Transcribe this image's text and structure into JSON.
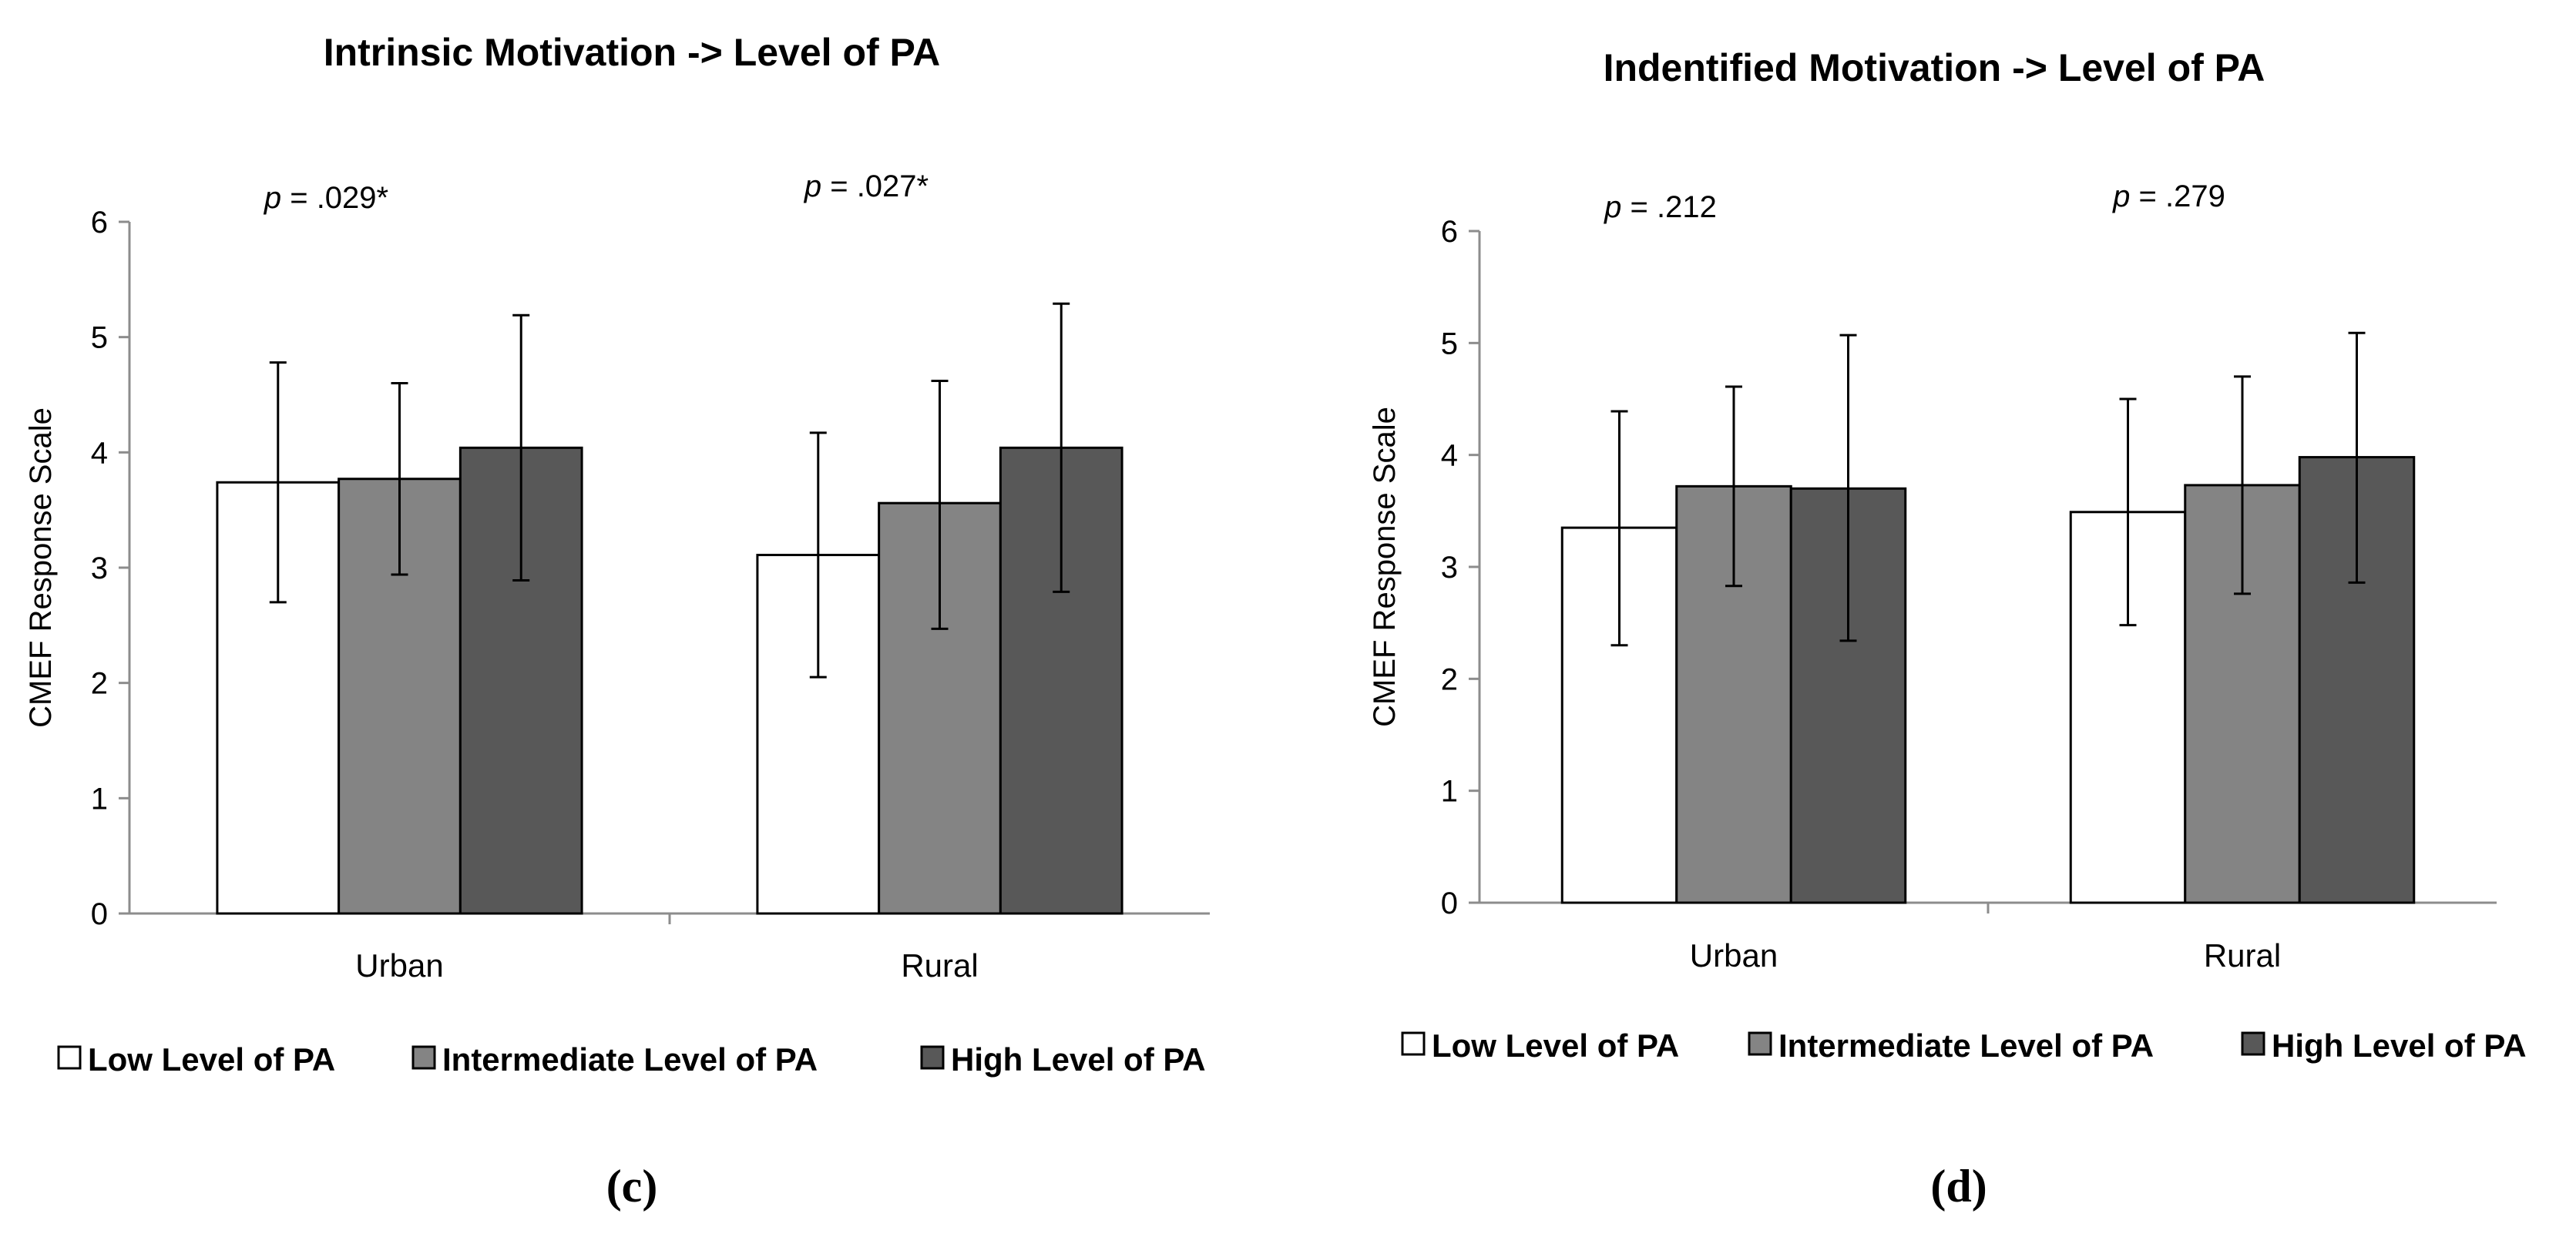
{
  "chart_data": [
    {
      "type": "bar",
      "panel_label": "c",
      "title": "Intrinsic Motivation -> Level of PA",
      "ylabel": "CMEF Response Scale",
      "xlabel": "",
      "ylim": [
        0,
        6
      ],
      "yticks": [
        0,
        1,
        2,
        3,
        4,
        5,
        6
      ],
      "categories": [
        "Urban",
        "Rural"
      ],
      "p_values": [
        {
          "prefix": "p",
          "text": " = .029*"
        },
        {
          "prefix": "p",
          "text": " = .027*"
        }
      ],
      "series": [
        {
          "name": "Low Level of PA",
          "color": "#ffffff",
          "values": [
            3.74,
            3.11
          ],
          "err_low": [
            2.7,
            2.05
          ],
          "err_high": [
            4.78,
            4.17
          ]
        },
        {
          "name": "Intermediate Level of PA",
          "color": "#848484",
          "values": [
            3.77,
            3.56
          ],
          "err_low": [
            2.94,
            2.47
          ],
          "err_high": [
            4.6,
            4.62
          ]
        },
        {
          "name": "High Level of PA",
          "color": "#585858",
          "values": [
            4.04,
            4.04
          ],
          "err_low": [
            2.89,
            2.79
          ],
          "err_high": [
            5.19,
            5.29
          ]
        }
      ],
      "legend_position": "bottom"
    },
    {
      "type": "bar",
      "panel_label": "d",
      "title": "Indentified Motivation -> Level of PA",
      "ylabel": "CMEF Response Scale",
      "xlabel": "",
      "ylim": [
        0,
        6
      ],
      "yticks": [
        0,
        1,
        2,
        3,
        4,
        5,
        6
      ],
      "categories": [
        "Urban",
        "Rural"
      ],
      "p_values": [
        {
          "prefix": "p",
          "text": " = .212"
        },
        {
          "prefix": "p",
          "text": " = .279"
        }
      ],
      "series": [
        {
          "name": "Low Level of PA",
          "color": "#ffffff",
          "values": [
            3.35,
            3.49
          ],
          "err_low": [
            2.3,
            2.48
          ],
          "err_high": [
            4.39,
            4.5
          ]
        },
        {
          "name": "Intermediate Level of PA",
          "color": "#848484",
          "values": [
            3.72,
            3.73
          ],
          "err_low": [
            2.83,
            2.76
          ],
          "err_high": [
            4.61,
            4.7
          ]
        },
        {
          "name": "High Level of PA",
          "color": "#585858",
          "values": [
            3.7,
            3.98
          ],
          "err_low": [
            2.34,
            2.86
          ],
          "err_high": [
            5.07,
            5.09
          ]
        }
      ],
      "legend_position": "bottom"
    }
  ]
}
